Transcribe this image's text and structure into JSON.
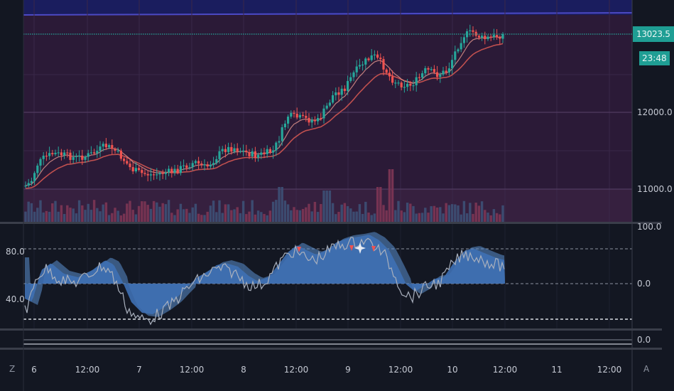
{
  "price_axis": {
    "current_price": "13023.5",
    "countdown": "23:48",
    "ticks": [
      "12000.0",
      "11000.0"
    ]
  },
  "oscillator_axis": {
    "right_ticks": [
      "100.0",
      "0.0"
    ],
    "left_ticks": [
      "80.0",
      "40.0"
    ]
  },
  "lower_pane_axis": {
    "tick": "0.0"
  },
  "time_axis": {
    "ticks": [
      "6",
      "12:00",
      "7",
      "12:00",
      "8",
      "12:00",
      "9",
      "12:00",
      "10",
      "12:00",
      "11",
      "12:00"
    ]
  },
  "buttons": {
    "zoom": "Z",
    "auto": "A"
  },
  "colors": {
    "up": "#26a69a",
    "down": "#ef5350",
    "pane_bg": "#2a1935",
    "top_band": "#1c1f66",
    "oscillator_fill": "#3f70b4"
  }
}
